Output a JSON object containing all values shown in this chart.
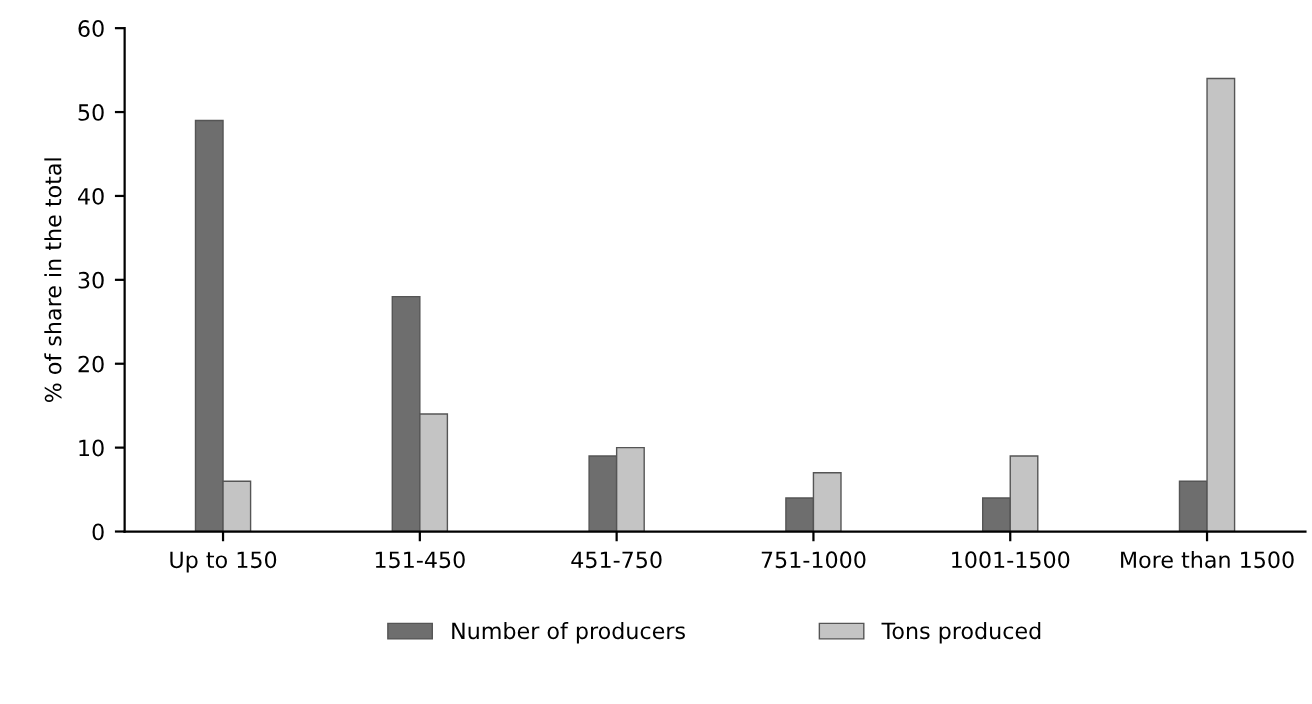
{
  "chart_data": {
    "type": "bar",
    "ylabel": "% of share in the total",
    "categories": [
      "Up to 150",
      "151-450",
      "451-750",
      "751-1000",
      "1001-1500",
      "More than 1500"
    ],
    "series": [
      {
        "name": "Number of producers",
        "color": "#6e6e6e",
        "values": [
          49,
          28,
          9,
          4,
          4,
          6
        ]
      },
      {
        "name": "Tons produced",
        "color": "#c4c4c4",
        "values": [
          6,
          14,
          10,
          7,
          9,
          54
        ]
      }
    ],
    "ylim": [
      0,
      60
    ],
    "yticks": [
      0,
      10,
      20,
      30,
      40,
      50,
      60
    ],
    "grid": false,
    "legend": "bottom"
  }
}
